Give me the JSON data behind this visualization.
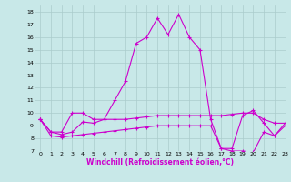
{
  "xlabel": "Windchill (Refroidissement éolien,°C)",
  "xlim": [
    -0.5,
    23
  ],
  "ylim": [
    7,
    18.5
  ],
  "xticks": [
    0,
    1,
    2,
    3,
    4,
    5,
    6,
    7,
    8,
    9,
    10,
    11,
    12,
    13,
    14,
    15,
    16,
    17,
    18,
    19,
    20,
    21,
    22,
    23
  ],
  "yticks": [
    7,
    8,
    9,
    10,
    11,
    12,
    13,
    14,
    15,
    16,
    17,
    18
  ],
  "bg_color": "#c8e8e8",
  "line_color": "#cc00cc",
  "grid_color": "#aacccc",
  "series": [
    [
      9.5,
      8.5,
      8.5,
      10.0,
      10.0,
      9.5,
      9.5,
      11.0,
      12.5,
      15.5,
      16.0,
      17.5,
      16.2,
      17.8,
      16.0,
      15.0,
      9.5,
      7.2,
      7.2,
      9.8,
      10.2,
      9.2,
      8.2,
      9.2
    ],
    [
      9.5,
      8.5,
      8.3,
      8.5,
      9.3,
      9.2,
      9.5,
      9.5,
      9.5,
      9.6,
      9.7,
      9.8,
      9.8,
      9.8,
      9.8,
      9.8,
      9.8,
      9.8,
      9.9,
      10.0,
      10.0,
      9.5,
      9.2,
      9.2
    ],
    [
      9.5,
      8.2,
      8.1,
      8.2,
      8.3,
      8.4,
      8.5,
      8.6,
      8.7,
      8.8,
      8.9,
      9.0,
      9.0,
      9.0,
      9.0,
      9.0,
      9.0,
      7.2,
      7.0,
      7.0,
      6.9,
      8.5,
      8.2,
      9.0
    ]
  ],
  "marker": "+",
  "markersize": 3,
  "linewidth": 0.8,
  "tick_fontsize": 4.5,
  "xlabel_fontsize": 5.5
}
